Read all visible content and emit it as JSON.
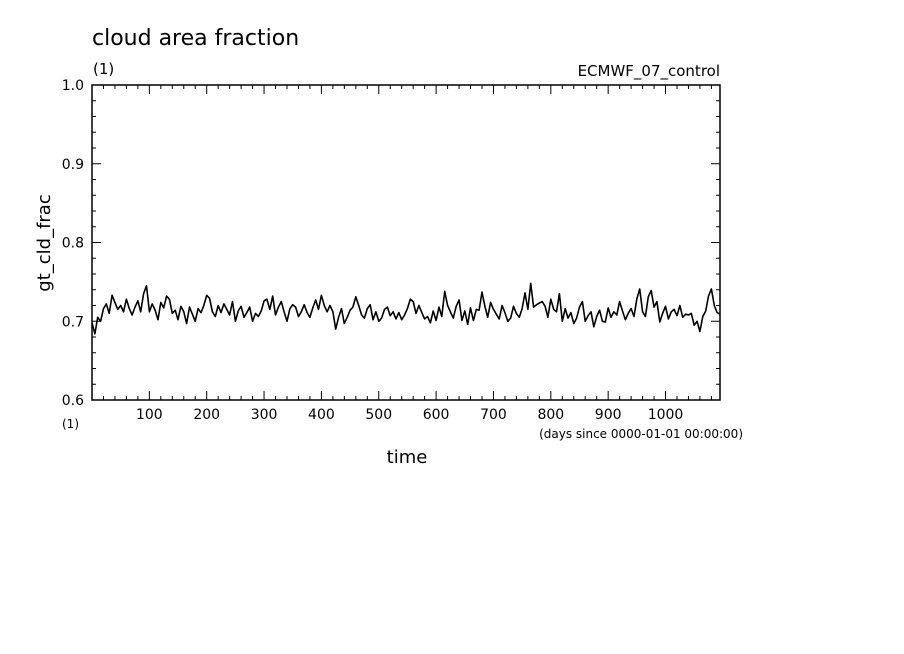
{
  "chart_data": {
    "type": "line",
    "title": "cloud area fraction",
    "title_units": "(1)",
    "experiment": "ECMWF_07_control",
    "ylabel": "gt_cld_frac",
    "xlabel": "time",
    "x_units_label": "(days since 0000-01-01 00:00:00)",
    "x_axis_units": "(1)",
    "ylim": [
      0.6,
      1.0
    ],
    "xlim": [
      0,
      1095
    ],
    "y_ticks": [
      "0.6",
      "0.7",
      "0.8",
      "0.9",
      "1.0"
    ],
    "x_ticks": [
      "100",
      "200",
      "300",
      "400",
      "500",
      "600",
      "700",
      "800",
      "900",
      "1000"
    ],
    "grid": false,
    "line_color": "#000000",
    "series": [
      {
        "x": [
          0,
          5,
          10,
          15,
          20,
          25,
          30,
          35,
          40,
          45,
          50,
          55,
          60,
          65,
          70,
          75,
          80,
          85,
          90,
          95,
          100,
          105,
          110,
          115,
          120,
          125,
          130,
          135,
          140,
          145,
          150,
          155,
          160,
          165,
          170,
          175,
          180,
          185,
          190,
          195,
          200,
          205,
          210,
          215,
          220,
          225,
          230,
          235,
          240,
          245,
          250,
          255,
          260,
          265,
          270,
          275,
          280,
          285,
          290,
          295,
          300,
          305,
          310,
          315,
          320,
          325,
          330,
          335,
          340,
          345,
          350,
          355,
          360,
          365,
          370,
          375,
          380,
          385,
          390,
          395,
          400,
          405,
          410,
          415,
          420,
          425,
          430,
          435,
          440,
          445,
          450,
          455,
          460,
          465,
          470,
          475,
          480,
          485,
          490,
          495,
          500,
          505,
          510,
          515,
          520,
          525,
          530,
          535,
          540,
          545,
          550,
          555,
          560,
          565,
          570,
          575,
          580,
          585,
          590,
          595,
          600,
          605,
          610,
          615,
          620,
          625,
          630,
          635,
          640,
          645,
          650,
          655,
          660,
          665,
          670,
          675,
          680,
          685,
          690,
          695,
          700,
          705,
          710,
          715,
          720,
          725,
          730,
          735,
          740,
          745,
          750,
          755,
          760,
          765,
          770,
          775,
          780,
          785,
          790,
          795,
          800,
          805,
          810,
          815,
          820,
          825,
          830,
          835,
          840,
          845,
          850,
          855,
          860,
          865,
          870,
          875,
          880,
          885,
          890,
          895,
          900,
          905,
          910,
          915,
          920,
          925,
          930,
          935,
          940,
          945,
          950,
          955,
          960,
          965,
          970,
          975,
          980,
          985,
          990,
          995,
          1000,
          1005,
          1010,
          1015,
          1020,
          1025,
          1030,
          1035,
          1040,
          1045,
          1050,
          1055,
          1060,
          1065,
          1070,
          1075,
          1080,
          1085,
          1090,
          1095
        ],
        "y": [
          0.698,
          0.684,
          0.705,
          0.7,
          0.716,
          0.722,
          0.71,
          0.733,
          0.724,
          0.715,
          0.72,
          0.712,
          0.728,
          0.716,
          0.708,
          0.718,
          0.726,
          0.712,
          0.735,
          0.745,
          0.712,
          0.722,
          0.714,
          0.702,
          0.724,
          0.717,
          0.732,
          0.728,
          0.71,
          0.714,
          0.702,
          0.719,
          0.712,
          0.697,
          0.718,
          0.709,
          0.7,
          0.716,
          0.711,
          0.72,
          0.733,
          0.729,
          0.712,
          0.706,
          0.72,
          0.711,
          0.722,
          0.715,
          0.708,
          0.725,
          0.7,
          0.713,
          0.719,
          0.705,
          0.711,
          0.718,
          0.7,
          0.71,
          0.706,
          0.713,
          0.726,
          0.728,
          0.715,
          0.732,
          0.708,
          0.718,
          0.725,
          0.712,
          0.7,
          0.716,
          0.721,
          0.718,
          0.706,
          0.712,
          0.721,
          0.711,
          0.705,
          0.717,
          0.727,
          0.715,
          0.733,
          0.72,
          0.712,
          0.72,
          0.712,
          0.69,
          0.705,
          0.716,
          0.697,
          0.705,
          0.714,
          0.718,
          0.731,
          0.72,
          0.708,
          0.704,
          0.716,
          0.721,
          0.702,
          0.712,
          0.7,
          0.704,
          0.715,
          0.718,
          0.707,
          0.712,
          0.703,
          0.711,
          0.702,
          0.708,
          0.716,
          0.728,
          0.725,
          0.71,
          0.72,
          0.711,
          0.703,
          0.706,
          0.698,
          0.713,
          0.701,
          0.718,
          0.706,
          0.738,
          0.72,
          0.712,
          0.704,
          0.719,
          0.727,
          0.701,
          0.713,
          0.696,
          0.717,
          0.701,
          0.715,
          0.714,
          0.737,
          0.719,
          0.705,
          0.724,
          0.715,
          0.709,
          0.703,
          0.72,
          0.711,
          0.7,
          0.704,
          0.719,
          0.71,
          0.705,
          0.716,
          0.736,
          0.715,
          0.748,
          0.718,
          0.721,
          0.723,
          0.725,
          0.719,
          0.705,
          0.728,
          0.715,
          0.712,
          0.735,
          0.7,
          0.716,
          0.704,
          0.711,
          0.697,
          0.704,
          0.718,
          0.725,
          0.7,
          0.707,
          0.712,
          0.693,
          0.706,
          0.714,
          0.7,
          0.699,
          0.717,
          0.705,
          0.712,
          0.708,
          0.725,
          0.713,
          0.702,
          0.71,
          0.716,
          0.706,
          0.728,
          0.741,
          0.712,
          0.706,
          0.731,
          0.739,
          0.718,
          0.725,
          0.699,
          0.71,
          0.719,
          0.703,
          0.712,
          0.715,
          0.707,
          0.72,
          0.705,
          0.709,
          0.708,
          0.71,
          0.695,
          0.7,
          0.687,
          0.706,
          0.713,
          0.732,
          0.741,
          0.72,
          0.711,
          0.709
        ]
      }
    ]
  }
}
